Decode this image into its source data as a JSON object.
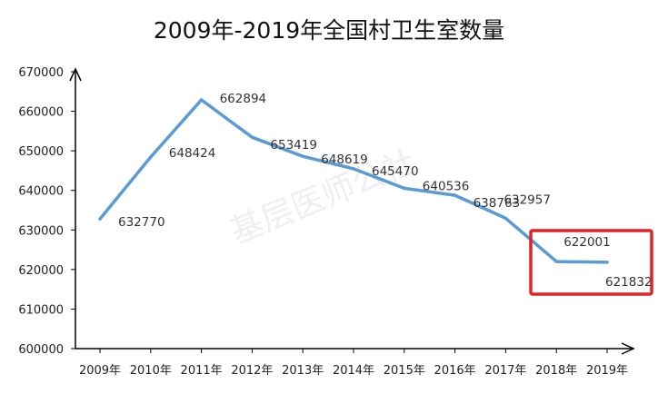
{
  "chart_data": {
    "type": "line",
    "title": "2009年-2019年全国村卫生室数量",
    "xlabel": "",
    "ylabel": "",
    "categories": [
      "2009年",
      "2010年",
      "2011年",
      "2012年",
      "2013年",
      "2014年",
      "2015年",
      "2016年",
      "2017年",
      "2018年",
      "2019年"
    ],
    "series": [
      {
        "values": [
          632770,
          648424,
          662894,
          653419,
          648619,
          645470,
          640536,
          638763,
          632957,
          622001,
          621832
        ]
      }
    ],
    "data_labels": [
      "632770",
      "648424",
      "662894",
      "653419",
      "648619",
      "645470",
      "640536",
      "638763",
      "632957",
      "622001",
      "621832"
    ],
    "ylim": [
      600000,
      670000
    ],
    "y_ticks": [
      "600000",
      "610000",
      "620000",
      "630000",
      "640000",
      "650000",
      "660000",
      "670000"
    ],
    "grid": false,
    "legend": "none",
    "line_color": "#5b9bd5",
    "highlight_box_color": "#e0242a",
    "highlighted_categories": [
      "2018年",
      "2019年"
    ],
    "watermark": "基层医师公社"
  }
}
